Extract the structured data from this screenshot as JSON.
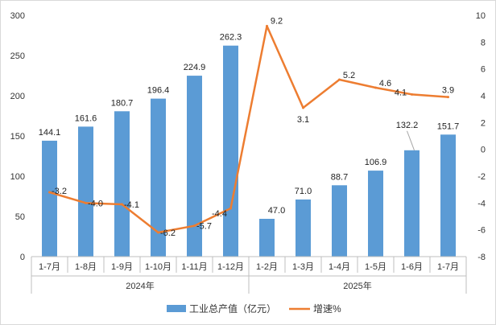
{
  "chart_data": {
    "type": "bar+line",
    "categories": [
      "1-7月",
      "1-8月",
      "1-9月",
      "1-10月",
      "1-11月",
      "1-12月",
      "1-2月",
      "1-3月",
      "1-4月",
      "1-5月",
      "1-6月",
      "1-7月"
    ],
    "groups": [
      {
        "label": "2024年",
        "start": 0,
        "end": 5
      },
      {
        "label": "2025年",
        "start": 6,
        "end": 11
      }
    ],
    "series": [
      {
        "name": "工业总产值（亿元）",
        "type": "bar",
        "axis": "left",
        "color": "#5b9bd5",
        "values": [
          144.1,
          161.6,
          180.7,
          196.4,
          224.9,
          262.3,
          47.0,
          71.0,
          88.7,
          106.9,
          132.2,
          151.7
        ],
        "labels": [
          "144.1",
          "161.6",
          "180.7",
          "196.4",
          "224.9",
          "262.3",
          "47.0",
          "71.0",
          "88.7",
          "106.9",
          "132.2",
          "151.7"
        ]
      },
      {
        "name": "增速%",
        "type": "line",
        "axis": "right",
        "color": "#ed7d31",
        "values": [
          -3.2,
          -4.0,
          -4.1,
          -6.2,
          -5.7,
          -4.4,
          9.2,
          3.1,
          5.2,
          4.6,
          4.1,
          3.9
        ],
        "labels": [
          "-3.2",
          "-4.0",
          "-4.1",
          "-6.2",
          "-5.7",
          "-4.4",
          "9.2",
          "3.1",
          "5.2",
          "4.6",
          "4.1",
          "3.9"
        ]
      }
    ],
    "y_left": {
      "min": 0,
      "max": 300,
      "step": 50,
      "ticks": [
        "0",
        "50",
        "100",
        "150",
        "200",
        "250",
        "300"
      ]
    },
    "y_right": {
      "min": -8,
      "max": 10,
      "step": 2,
      "ticks": [
        "-8",
        "-6",
        "-4",
        "-2",
        "0",
        "2",
        "4",
        "6",
        "8",
        "10"
      ]
    },
    "grid": false,
    "legend_position": "bottom"
  }
}
